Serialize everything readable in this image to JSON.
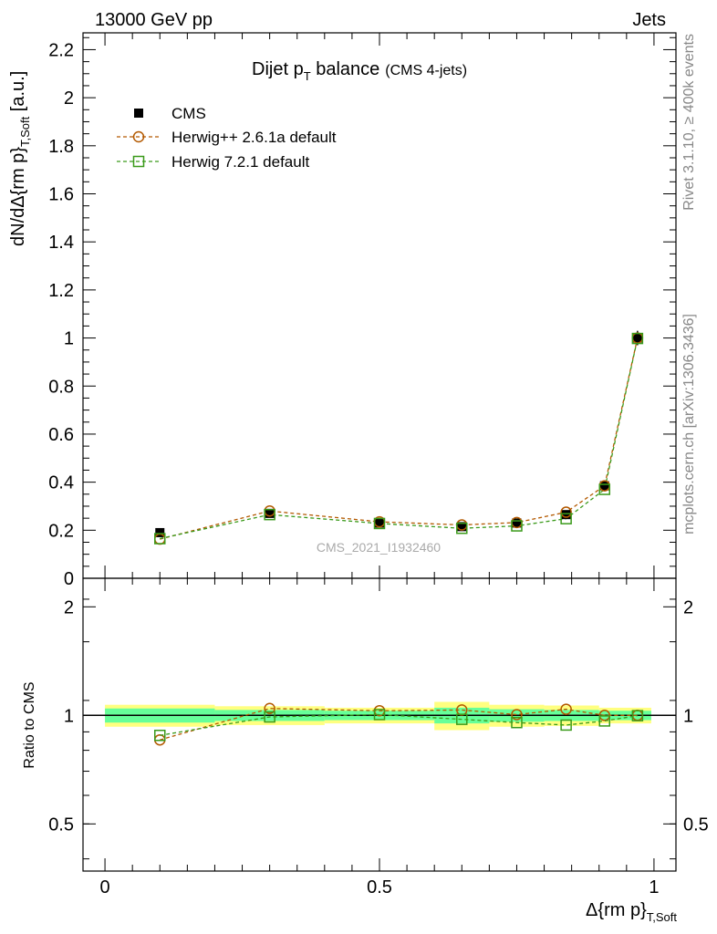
{
  "header": {
    "left": "13000 GeV pp",
    "right": "Jets"
  },
  "side_labels": {
    "rivet": "Rivet 3.1.10, ≥ 400k events",
    "mcplots": "mcplots.cern.ch [arXiv:1306.3436]"
  },
  "title": {
    "main": "Dijet p",
    "main_sub": "T",
    "main_after": " balance",
    "note": "(CMS 4-jets)"
  },
  "watermark": "CMS_2021_I1932460",
  "axes": {
    "ylabel_main": "dN/dΔ{rm p}",
    "ylabel_main_sub": "T,Soft",
    "ylabel_main_unit": " [a.u.]",
    "ylabel_ratio": "Ratio to CMS",
    "xlabel": "Δ{rm p}",
    "xlabel_sub": "T,Soft"
  },
  "colors": {
    "cms": "#000000",
    "herwigpp": "#b35900",
    "herwig7": "#3a9a1a",
    "band_inner": "#66ff99",
    "band_outer": "#ffff80"
  },
  "chart_data": [
    {
      "type": "scatter",
      "panel": "main",
      "xlim": [
        -0.04,
        1.04
      ],
      "ylim": [
        0,
        2.27
      ],
      "yticks": [
        0,
        0.2,
        0.4,
        0.6,
        0.8,
        1,
        1.2,
        1.4,
        1.6,
        1.8,
        2,
        2.2
      ],
      "ytick_labels": [
        "0",
        "0.2",
        "0.4",
        "0.6",
        "0.8",
        "1",
        "1.2",
        "1.4",
        "1.6",
        "1.8",
        "2",
        "2.2"
      ],
      "x": [
        0.1,
        0.3,
        0.5,
        0.65,
        0.75,
        0.84,
        0.91,
        0.97
      ],
      "legend_position": "top-left",
      "series": [
        {
          "name": "CMS",
          "marker": "filled-square",
          "values": [
            0.19,
            0.27,
            0.23,
            0.215,
            0.23,
            0.265,
            0.385,
            1.0
          ],
          "yerr": [
            0.01,
            0.01,
            0.008,
            0.01,
            0.01,
            0.01,
            0.015,
            0.03
          ]
        },
        {
          "name": "Herwig++ 2.6.1a default",
          "marker": "open-circle",
          "line": "dashed",
          "values": [
            0.163,
            0.28,
            0.235,
            0.222,
            0.232,
            0.275,
            0.385,
            1.0
          ]
        },
        {
          "name": "Herwig 7.2.1 default",
          "marker": "open-square",
          "line": "dashed",
          "values": [
            0.165,
            0.265,
            0.228,
            0.208,
            0.218,
            0.248,
            0.37,
            0.998
          ]
        }
      ]
    },
    {
      "type": "scatter",
      "panel": "ratio",
      "scale": "log",
      "xlim": [
        -0.04,
        1.04
      ],
      "ylim": [
        0.37,
        2.4
      ],
      "yticks": [
        0.5,
        1,
        2
      ],
      "ytick_labels": [
        "0.5",
        "1",
        "2"
      ],
      "xticks": [
        0,
        0.5,
        1
      ],
      "xtick_labels": [
        "0",
        "0.5",
        "1"
      ],
      "x": [
        0.1,
        0.3,
        0.5,
        0.65,
        0.75,
        0.84,
        0.91,
        0.97
      ],
      "bands": [
        {
          "x0": 0.0,
          "x1": 0.2,
          "inner": 0.045,
          "outer": 0.07
        },
        {
          "x0": 0.2,
          "x1": 0.4,
          "inner": 0.035,
          "outer": 0.06
        },
        {
          "x0": 0.4,
          "x1": 0.6,
          "inner": 0.03,
          "outer": 0.05
        },
        {
          "x0": 0.6,
          "x1": 0.7,
          "inner": 0.05,
          "outer": 0.09
        },
        {
          "x0": 0.7,
          "x1": 0.8,
          "inner": 0.04,
          "outer": 0.07
        },
        {
          "x0": 0.8,
          "x1": 0.9,
          "inner": 0.035,
          "outer": 0.065
        },
        {
          "x0": 0.9,
          "x1": 0.995,
          "inner": 0.03,
          "outer": 0.05
        }
      ],
      "series": [
        {
          "name": "Herwig++ 2.6.1a default",
          "marker": "open-circle",
          "line": "dashed",
          "values": [
            0.855,
            1.045,
            1.03,
            1.035,
            1.005,
            1.04,
            1.0,
            1.0
          ]
        },
        {
          "name": "Herwig 7.2.1 default",
          "marker": "open-square",
          "line": "dashed",
          "values": [
            0.88,
            0.99,
            1.005,
            0.975,
            0.955,
            0.94,
            0.965,
            0.998
          ]
        }
      ]
    }
  ]
}
